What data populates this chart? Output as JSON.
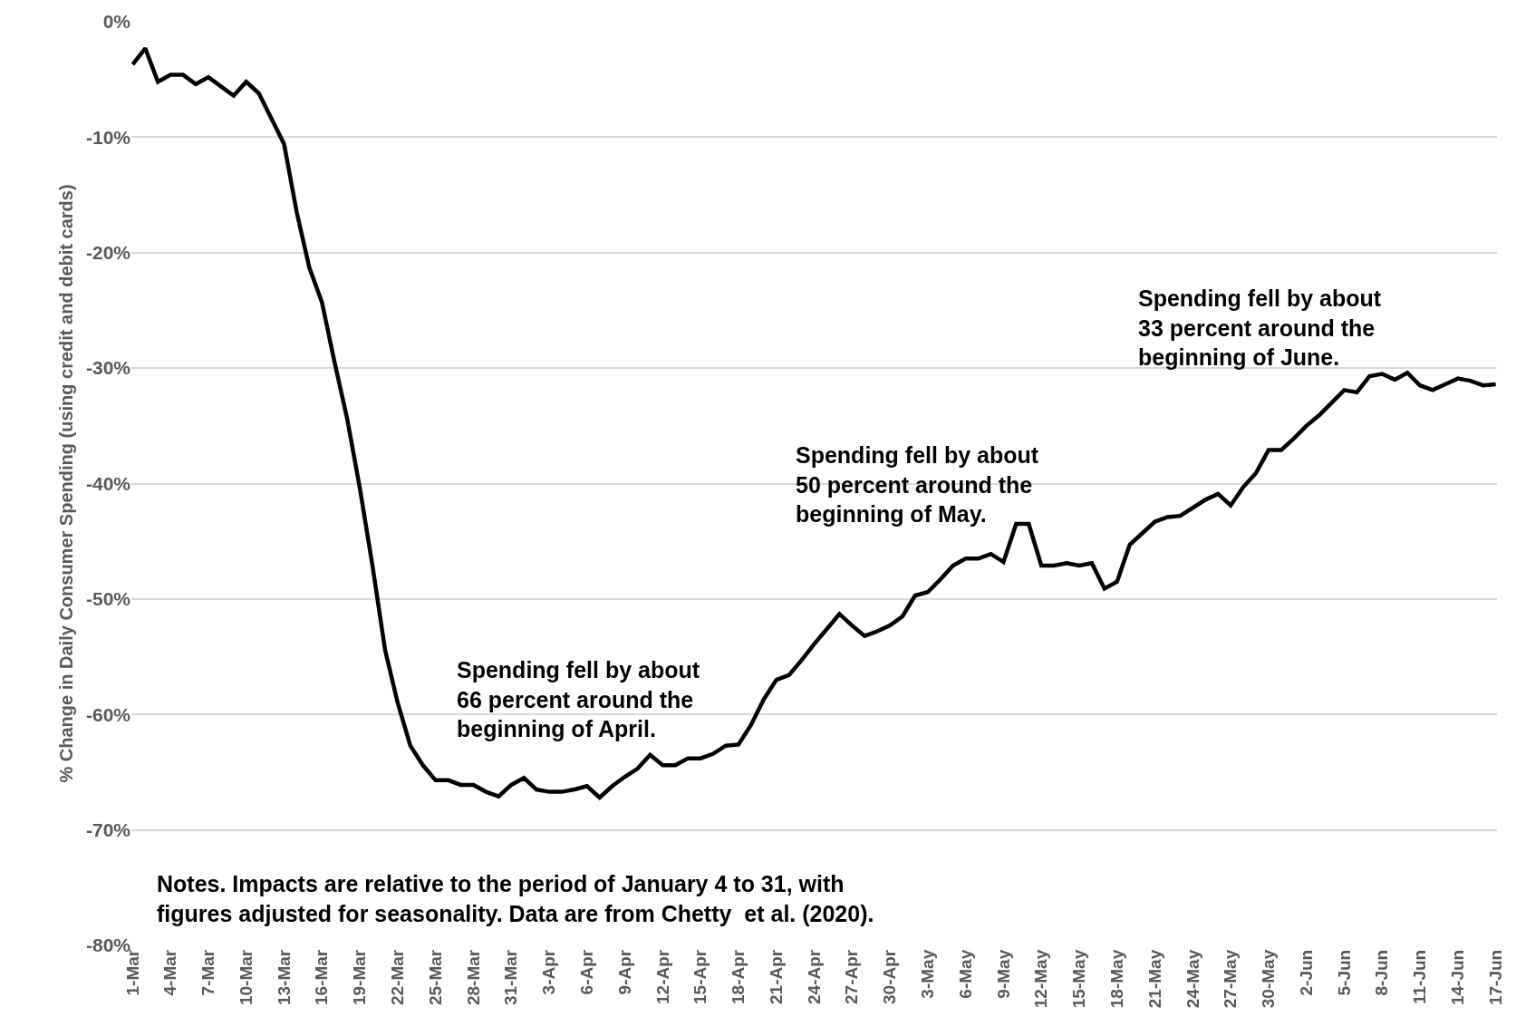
{
  "chart_data": {
    "type": "line",
    "ylabel": "% Change in Daily Consumer Spending (using credit and debit cards)",
    "categories": [
      "1-Mar",
      null,
      null,
      "4-Mar",
      null,
      null,
      "7-Mar",
      null,
      null,
      "10-Mar",
      null,
      null,
      "13-Mar",
      null,
      null,
      "16-Mar",
      null,
      null,
      "19-Mar",
      null,
      null,
      "22-Mar",
      null,
      null,
      "25-Mar",
      null,
      null,
      "28-Mar",
      null,
      null,
      "31-Mar",
      null,
      null,
      "3-Apr",
      null,
      null,
      "6-Apr",
      null,
      null,
      "9-Apr",
      null,
      null,
      "12-Apr",
      null,
      null,
      "15-Apr",
      null,
      null,
      "18-Apr",
      null,
      null,
      "21-Apr",
      null,
      null,
      "24-Apr",
      null,
      null,
      "27-Apr",
      null,
      null,
      "30-Apr",
      null,
      null,
      "3-May",
      null,
      null,
      "6-May",
      null,
      null,
      "9-May",
      null,
      null,
      "12-May",
      null,
      null,
      "15-May",
      null,
      null,
      "18-May",
      null,
      null,
      "21-May",
      null,
      null,
      "24-May",
      null,
      null,
      "27-May",
      null,
      null,
      "30-May",
      null,
      null,
      "2-Jun",
      null,
      null,
      "5-Jun",
      null,
      null,
      "8-Jun",
      null,
      null,
      "11-Jun",
      null,
      null,
      "14-Jun",
      null,
      null,
      "17-Jun"
    ],
    "series": [
      {
        "color": "#000000",
        "values": [
          -3.7,
          -2.3,
          -5.2,
          -4.6,
          -4.6,
          -5.4,
          -4.8,
          -5.6,
          -6.4,
          -5.2,
          -6.2,
          -8.4,
          -10.6,
          -16.5,
          -21.3,
          -24.3,
          -29.5,
          -34.4,
          -40.4,
          -47.1,
          -54.4,
          -59.0,
          -62.7,
          -64.4,
          -65.7,
          -65.7,
          -66.1,
          -66.1,
          -66.7,
          -67.1,
          -66.1,
          -65.5,
          -66.5,
          -66.7,
          -66.7,
          -66.5,
          -66.2,
          -67.2,
          -66.2,
          -65.4,
          -64.7,
          -63.5,
          -64.4,
          -64.4,
          -63.8,
          -63.8,
          -63.4,
          -62.7,
          -62.6,
          -60.9,
          -58.7,
          -57.0,
          -56.6,
          -55.3,
          -53.9,
          -52.6,
          -51.3,
          -52.3,
          -53.2,
          -52.8,
          -52.3,
          -51.5,
          -49.7,
          -49.4,
          -48.3,
          -47.1,
          -46.5,
          -46.5,
          -46.1,
          -46.8,
          -43.5,
          -43.5,
          -47.1,
          -47.1,
          -46.9,
          -47.1,
          -46.9,
          -49.1,
          -48.5,
          -45.3,
          -44.3,
          -43.3,
          -42.9,
          -42.8,
          -42.1,
          -41.4,
          -40.9,
          -41.9,
          -40.3,
          -39.1,
          -37.1,
          -37.1,
          -36.1,
          -35.0,
          -34.1,
          -33.0,
          -31.9,
          -32.1,
          -30.7,
          -30.5,
          -31.0,
          -30.4,
          -31.5,
          -31.9,
          -31.4,
          -30.9,
          -31.1,
          -31.5,
          -31.4
        ]
      }
    ],
    "ylim": [
      -80,
      0
    ],
    "yticks": [
      {
        "value": -80,
        "label": "-80%"
      },
      {
        "value": -70,
        "label": "-70%"
      },
      {
        "value": -60,
        "label": "-60%"
      },
      {
        "value": -50,
        "label": "-50%"
      },
      {
        "value": -40,
        "label": "-40%"
      },
      {
        "value": -30,
        "label": "-30%"
      },
      {
        "value": -20,
        "label": "-20%"
      },
      {
        "value": -10,
        "label": "-10%"
      },
      {
        "value": 0,
        "label": "0%"
      }
    ],
    "grid": "y",
    "marker": "none",
    "line_style": "solid",
    "annotations": [
      "Spending fell by about\n66 percent around the\nbeginning of April.",
      "Spending fell by about\n50 percent around the\nbeginning of May.",
      "Spending fell by about\n33 percent around the\nbeginning of June.",
      "Notes. Impacts are relative to the period of January 4 to 31, with\nfigures adjusted for seasonality. Data are from Chetty  et al. (2020)."
    ]
  }
}
